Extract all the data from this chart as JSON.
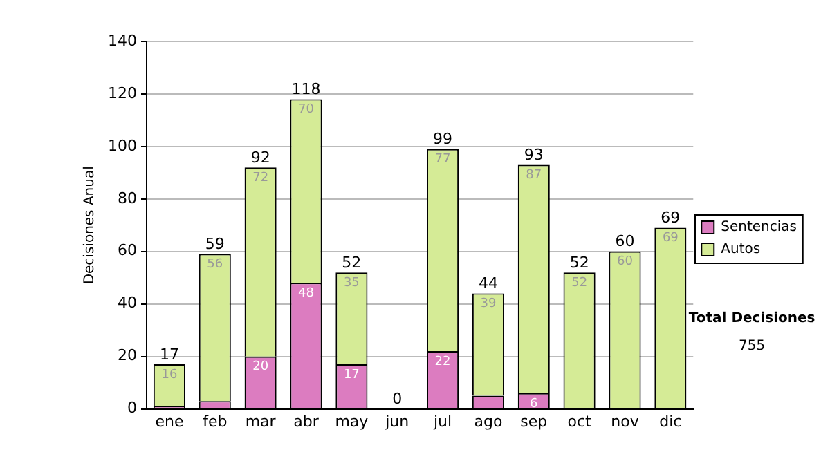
{
  "chart_data": {
    "type": "bar",
    "stacked": true,
    "ylabel": "Decisiones Anual",
    "categories": [
      "ene",
      "feb",
      "mar",
      "abr",
      "may",
      "jun",
      "jul",
      "ago",
      "sep",
      "oct",
      "nov",
      "dic"
    ],
    "series": [
      {
        "name": "Sentencias",
        "color": "#dc7cc0",
        "values": [
          1,
          3,
          20,
          48,
          17,
          0,
          22,
          5,
          6,
          0,
          0,
          0
        ],
        "value_labels": [
          null,
          null,
          "20",
          "48",
          "17",
          null,
          "22",
          null,
          "6",
          null,
          null,
          null
        ]
      },
      {
        "name": "Autos",
        "color": "#d5eb96",
        "values": [
          16,
          56,
          72,
          70,
          35,
          0,
          77,
          39,
          87,
          52,
          60,
          69
        ],
        "value_labels": [
          "16",
          "56",
          "72",
          "70",
          "35",
          null,
          "77",
          "39",
          "87",
          "52",
          "60",
          "69"
        ]
      }
    ],
    "totals": [
      "17",
      "59",
      "92",
      "118",
      "52",
      "0",
      "99",
      "44",
      "93",
      "52",
      "60",
      "69"
    ],
    "ylim": [
      0,
      140
    ],
    "yticks": [
      0,
      20,
      40,
      60,
      80,
      100,
      120,
      140
    ],
    "grid": "y",
    "legend": "right",
    "annotations": [
      "Total Decisiones",
      "755"
    ]
  }
}
